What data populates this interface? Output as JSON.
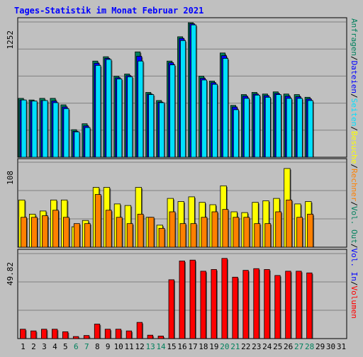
{
  "title": "Tages-Statistik im Monat Februar 2021",
  "colors": {
    "background": "#c0c0c0",
    "title": "#0000ff",
    "anfragen": "#00805c",
    "dateien": "#0000ff",
    "seiten": "#00e0ff",
    "besuche": "#ffff00",
    "rechner": "#ff8000",
    "volume_out": "#00805c",
    "volume_in": "#0000ff",
    "volumen": "#ff0000",
    "weekend_label": "#00805c",
    "weekday_label": "#000000"
  },
  "legend": {
    "top_right": [
      {
        "text": "Anfragen",
        "color": "#00805c"
      },
      {
        "text": "/",
        "color": "#000000"
      },
      {
        "text": "Dateien",
        "color": "#0000ff"
      },
      {
        "text": "/",
        "color": "#000000"
      },
      {
        "text": "Seiten",
        "color": "#00e0ff"
      },
      {
        "text": "/",
        "color": "#000000"
      },
      {
        "text": "Besuche",
        "color": "#ffff00"
      },
      {
        "text": "/",
        "color": "#000000"
      },
      {
        "text": "Rechner",
        "color": "#ff8000"
      },
      {
        "text": "/",
        "color": "#000000"
      },
      {
        "text": "Vol. Out",
        "color": "#00805c"
      },
      {
        "text": "/",
        "color": "#000000"
      },
      {
        "text": "Vol. In",
        "color": "#0000ff"
      },
      {
        "text": "/",
        "color": "#000000"
      },
      {
        "text": "Volumen",
        "color": "#ff0000"
      }
    ]
  },
  "chart_data": [
    {
      "type": "bar",
      "panel": "hits",
      "max_label": "1252",
      "ylim": [
        0,
        1252
      ],
      "categories": [
        "1",
        "2",
        "3",
        "4",
        "5",
        "6",
        "7",
        "8",
        "9",
        "10",
        "11",
        "12",
        "13",
        "14",
        "15",
        "16",
        "17",
        "18",
        "19",
        "20",
        "21",
        "22",
        "23",
        "24",
        "25",
        "26",
        "27",
        "28",
        "29",
        "30",
        "31"
      ],
      "weekend_days": [
        "6",
        "7",
        "13",
        "14",
        "20",
        "21",
        "27",
        "28"
      ],
      "series": [
        {
          "name": "Anfragen",
          "values": [
            545,
            530,
            545,
            545,
            485,
            255,
            310,
            890,
            930,
            750,
            770,
            975,
            600,
            525,
            890,
            1115,
            1245,
            750,
            705,
            965,
            480,
            580,
            600,
            585,
            605,
            585,
            580,
            555,
            null,
            null,
            null
          ]
        },
        {
          "name": "Dateien",
          "values": [
            530,
            520,
            525,
            520,
            465,
            240,
            290,
            870,
            915,
            735,
            755,
            935,
            585,
            510,
            875,
            1100,
            1235,
            730,
            690,
            940,
            465,
            565,
            585,
            570,
            590,
            565,
            560,
            540,
            null,
            null,
            null
          ]
        },
        {
          "name": "Seiten",
          "values": [
            530,
            520,
            525,
            505,
            450,
            235,
            275,
            850,
            905,
            725,
            745,
            890,
            580,
            505,
            855,
            1080,
            1225,
            715,
            675,
            915,
            440,
            545,
            575,
            555,
            580,
            545,
            545,
            525,
            null,
            null,
            null
          ]
        }
      ]
    },
    {
      "type": "bar",
      "panel": "visits",
      "max_label": "108",
      "ylim": [
        0,
        108
      ],
      "categories": [
        "1",
        "2",
        "3",
        "4",
        "5",
        "6",
        "7",
        "8",
        "9",
        "10",
        "11",
        "12",
        "13",
        "14",
        "15",
        "16",
        "17",
        "18",
        "19",
        "20",
        "21",
        "22",
        "23",
        "24",
        "25",
        "26",
        "27",
        "28",
        "29",
        "30",
        "31"
      ],
      "series": [
        {
          "name": "Besuche",
          "values": [
            60,
            42,
            46,
            60,
            60,
            26,
            34,
            76,
            76,
            55,
            53,
            76,
            38,
            28,
            62,
            58,
            64,
            57,
            54,
            78,
            45,
            44,
            57,
            59,
            62,
            100,
            55,
            58,
            null,
            null,
            null
          ]
        },
        {
          "name": "Rechner",
          "values": [
            38,
            38,
            40,
            47,
            38,
            30,
            30,
            67,
            47,
            38,
            30,
            42,
            38,
            24,
            45,
            30,
            30,
            38,
            45,
            48,
            38,
            38,
            30,
            30,
            45,
            60,
            38,
            42,
            null,
            null,
            null
          ]
        }
      ]
    },
    {
      "type": "bar",
      "panel": "volume",
      "max_label": "49.82",
      "ylim": [
        0,
        49.82
      ],
      "categories": [
        "1",
        "2",
        "3",
        "4",
        "5",
        "6",
        "7",
        "8",
        "9",
        "10",
        "11",
        "12",
        "13",
        "14",
        "15",
        "16",
        "17",
        "18",
        "19",
        "20",
        "21",
        "22",
        "23",
        "24",
        "25",
        "26",
        "27",
        "28",
        "29",
        "30",
        "31"
      ],
      "series": [
        {
          "name": "Volumen",
          "values": [
            5.5,
            4.5,
            5.5,
            5.5,
            4.0,
            1.2,
            1.8,
            8.5,
            5.5,
            5.5,
            4.5,
            9.5,
            2.0,
            1.5,
            34.5,
            45.5,
            46.0,
            39.5,
            40.5,
            47.0,
            36.0,
            40.0,
            41.0,
            40.5,
            37.0,
            39.5,
            39.5,
            38.5,
            null,
            null,
            null
          ]
        }
      ]
    }
  ]
}
